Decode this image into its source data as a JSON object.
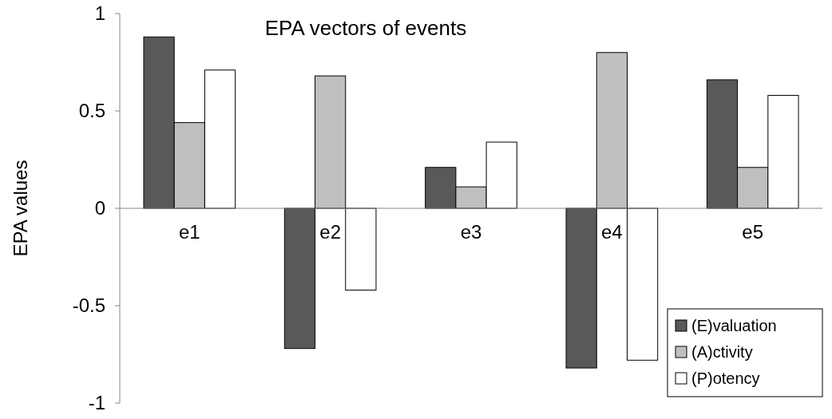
{
  "chart_data": {
    "type": "bar",
    "title": "EPA vectors of events",
    "ylabel": "EPA values",
    "categories": [
      "e1",
      "e2",
      "e3",
      "e4",
      "e5"
    ],
    "series": [
      {
        "name": "(E)valuation",
        "color": "#595959",
        "values": [
          0.88,
          -0.72,
          0.21,
          -0.82,
          0.66
        ]
      },
      {
        "name": "(A)ctivity",
        "color": "#bfbfbf",
        "values": [
          0.44,
          0.68,
          0.11,
          0.8,
          0.21
        ]
      },
      {
        "name": "(P)otency",
        "color": "#ffffff",
        "values": [
          0.71,
          -0.42,
          0.34,
          -0.78,
          0.58
        ]
      }
    ],
    "ylim": [
      -1,
      1
    ],
    "yticks": [
      -1,
      -0.5,
      0,
      0.5,
      1
    ],
    "grid": false,
    "legend": "bottom right"
  }
}
